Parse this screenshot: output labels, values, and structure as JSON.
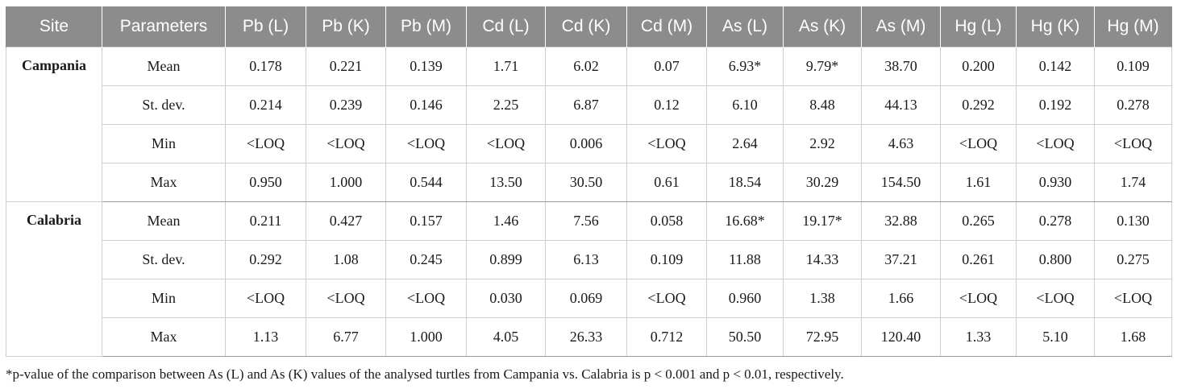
{
  "table": {
    "headers": [
      "Site",
      "Parameters",
      "Pb (L)",
      "Pb (K)",
      "Pb (M)",
      "Cd (L)",
      "Cd (K)",
      "Cd (M)",
      "As (L)",
      "As (K)",
      "As (M)",
      "Hg (L)",
      "Hg (K)",
      "Hg (M)"
    ],
    "groups": [
      {
        "site": "Campania",
        "rows": [
          {
            "param": "Mean",
            "values": [
              "0.178",
              "0.221",
              "0.139",
              "1.71",
              "6.02",
              "0.07",
              "6.93*",
              "9.79*",
              "38.70",
              "0.200",
              "0.142",
              "0.109"
            ]
          },
          {
            "param": "St. dev.",
            "values": [
              "0.214",
              "0.239",
              "0.146",
              "2.25",
              "6.87",
              "0.12",
              "6.10",
              "8.48",
              "44.13",
              "0.292",
              "0.192",
              "0.278"
            ]
          },
          {
            "param": "Min",
            "values": [
              "<LOQ",
              "<LOQ",
              "<LOQ",
              "<LOQ",
              "0.006",
              "<LOQ",
              "2.64",
              "2.92",
              "4.63",
              "<LOQ",
              "<LOQ",
              "<LOQ"
            ]
          },
          {
            "param": "Max",
            "values": [
              "0.950",
              "1.000",
              "0.544",
              "13.50",
              "30.50",
              "0.61",
              "18.54",
              "30.29",
              "154.50",
              "1.61",
              "0.930",
              "1.74"
            ]
          }
        ]
      },
      {
        "site": "Calabria",
        "rows": [
          {
            "param": "Mean",
            "values": [
              "0.211",
              "0.427",
              "0.157",
              "1.46",
              "7.56",
              "0.058",
              "16.68*",
              "19.17*",
              "32.88",
              "0.265",
              "0.278",
              "0.130"
            ]
          },
          {
            "param": "St. dev.",
            "values": [
              "0.292",
              "1.08",
              "0.245",
              "0.899",
              "6.13",
              "0.109",
              "11.88",
              "14.33",
              "37.21",
              "0.261",
              "0.800",
              "0.275"
            ]
          },
          {
            "param": "Min",
            "values": [
              "<LOQ",
              "<LOQ",
              "<LOQ",
              "0.030",
              "0.069",
              "<LOQ",
              "0.960",
              "1.38",
              "1.66",
              "<LOQ",
              "<LOQ",
              "<LOQ"
            ]
          },
          {
            "param": "Max",
            "values": [
              "1.13",
              "6.77",
              "1.000",
              "4.05",
              "26.33",
              "0.712",
              "50.50",
              "72.95",
              "120.40",
              "1.33",
              "5.10",
              "1.68"
            ]
          }
        ]
      }
    ]
  },
  "footnote": "*p-value of the comparison between As (L) and As (K) values of the analysed turtles from Campania vs. Calabria is p < 0.001 and p < 0.01, respectively."
}
